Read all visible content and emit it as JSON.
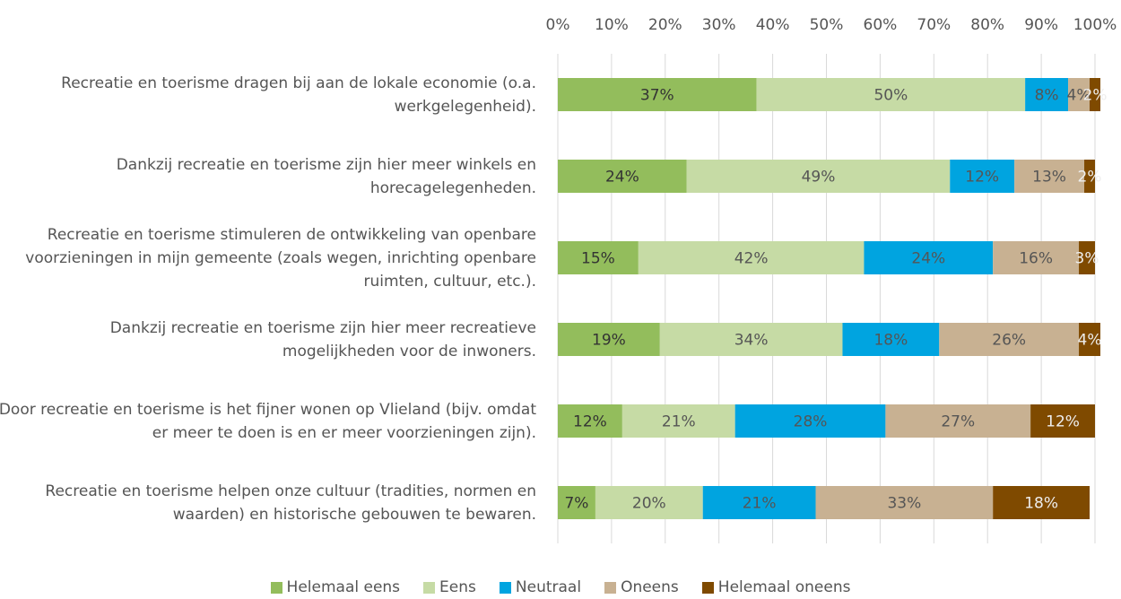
{
  "chart_data": {
    "type": "stacked_bar_horizontal",
    "categories": [
      "Recreatie en toerisme dragen bij aan de lokale economie (o.a. werkgelegenheid).",
      "Dankzij recreatie en toerisme zijn hier meer winkels en horecagelegenheden.",
      "Recreatie en toerisme stimuleren de ontwikkeling van openbare voorzieningen in mijn gemeente (zoals wegen, inrichting openbare ruimten, cultuur, etc.).",
      "Dankzij recreatie en toerisme zijn hier meer recreatieve mogelijkheden voor de inwoners.",
      "Door recreatie en toerisme is het fijner wonen op Vlieland (bijv. omdat er meer te doen is en er meer voorzieningen zijn).",
      "Recreatie en toerisme helpen onze cultuur (tradities, normen en waarden) en historische gebouwen te bewaren."
    ],
    "series": [
      {
        "name": "Helemaal eens",
        "color": "#93bd5c",
        "values": [
          37,
          24,
          15,
          19,
          12,
          7
        ],
        "value_labels": [
          "37%",
          "24%",
          "15%",
          "19%",
          "12%",
          "7%"
        ]
      },
      {
        "name": "Eens",
        "color": "#c6dba5",
        "values": [
          50,
          49,
          42,
          34,
          21,
          20
        ],
        "value_labels": [
          "50%",
          "49%",
          "42%",
          "34%",
          "21%",
          "20%"
        ]
      },
      {
        "name": "Neutraal",
        "color": "#00a4e0",
        "values": [
          8,
          12,
          24,
          18,
          28,
          21
        ],
        "value_labels": [
          "8%",
          "12%",
          "24%",
          "18%",
          "28%",
          "21%"
        ]
      },
      {
        "name": "Oneens",
        "color": "#c8b192",
        "values": [
          4,
          13,
          16,
          26,
          27,
          33
        ],
        "value_labels": [
          "4%",
          "13%",
          "16%",
          "26%",
          "27%",
          "33%"
        ]
      },
      {
        "name": "Helemaal oneens",
        "color": "#7f4a00",
        "values": [
          2,
          2,
          3,
          4,
          12,
          18
        ],
        "value_labels": [
          "2%",
          "2%",
          "3%",
          "4%",
          "12%",
          "18%"
        ]
      }
    ],
    "xlim": [
      0,
      100
    ],
    "xticks": [
      {
        "value": 0,
        "label": "0%"
      },
      {
        "value": 10,
        "label": "10%"
      },
      {
        "value": 20,
        "label": "20%"
      },
      {
        "value": 30,
        "label": "30%"
      },
      {
        "value": 40,
        "label": "40%"
      },
      {
        "value": 50,
        "label": "50%"
      },
      {
        "value": 60,
        "label": "60%"
      },
      {
        "value": 70,
        "label": "70%"
      },
      {
        "value": 80,
        "label": "80%"
      },
      {
        "value": 90,
        "label": "90%"
      },
      {
        "value": 100,
        "label": "100%"
      }
    ],
    "grid": true,
    "legend": "bottom"
  }
}
